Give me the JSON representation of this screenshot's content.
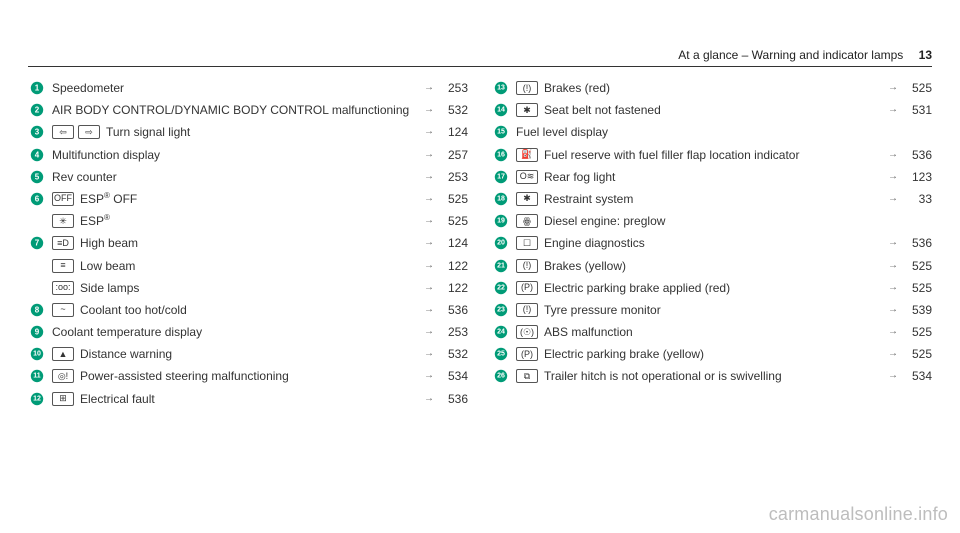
{
  "header": {
    "title": "At a glance – Warning and indicator lamps",
    "page_number": "13"
  },
  "circle": {
    "fill": "#009b77",
    "text": "#ffffff"
  },
  "left": [
    {
      "n": "1",
      "icons": [],
      "text": "Speedometer",
      "page": "253"
    },
    {
      "n": "2",
      "icons": [],
      "text": "AIR BODY CONTROL/DYNAMIC BODY CONTROL malfunctioning",
      "page": "532"
    },
    {
      "n": "3",
      "icons": [
        "⇦",
        "⇨"
      ],
      "text": "Turn signal light",
      "page": "124"
    },
    {
      "n": "4",
      "icons": [],
      "text": "Multifunction display",
      "page": "257"
    },
    {
      "n": "5",
      "icons": [],
      "text": "Rev counter",
      "page": "253"
    },
    {
      "n": "6",
      "icons": [
        "OFF"
      ],
      "text": "ESP® OFF",
      "page": "525",
      "sup": true
    },
    {
      "n": "",
      "icons": [
        "✳"
      ],
      "text": "ESP®",
      "page": "525",
      "sup": true
    },
    {
      "n": "7",
      "icons": [
        "≡D"
      ],
      "text": "High beam",
      "page": "124"
    },
    {
      "n": "",
      "icons": [
        "≡"
      ],
      "text": "Low beam",
      "page": "122"
    },
    {
      "n": "",
      "icons": [
        ":oo:"
      ],
      "text": "Side lamps",
      "page": "122"
    },
    {
      "n": "8",
      "icons": [
        "~"
      ],
      "text": "Coolant too hot/cold",
      "page": "536"
    },
    {
      "n": "9",
      "icons": [],
      "text": "Coolant temperature display",
      "page": "253"
    },
    {
      "n": "10",
      "icons": [
        "▲"
      ],
      "text": "Distance warning",
      "page": "532"
    },
    {
      "n": "11",
      "icons": [
        "◎!"
      ],
      "text": "Power-assisted steering malfunctioning",
      "page": "534"
    },
    {
      "n": "12",
      "icons": [
        "⊞"
      ],
      "text": "Electrical fault",
      "page": "536"
    }
  ],
  "right": [
    {
      "n": "13",
      "icons": [
        "(!)"
      ],
      "text": "Brakes (red)",
      "page": "525"
    },
    {
      "n": "14",
      "icons": [
        "✱"
      ],
      "text": "Seat belt not fastened",
      "page": "531"
    },
    {
      "n": "15",
      "icons": [],
      "text": "Fuel level display",
      "page": ""
    },
    {
      "n": "16",
      "icons": [
        "⛽"
      ],
      "text": "Fuel reserve with fuel filler flap location indicator",
      "page": "536"
    },
    {
      "n": "17",
      "icons": [
        "O≋"
      ],
      "text": "Rear fog light",
      "page": "123"
    },
    {
      "n": "18",
      "icons": [
        "✱"
      ],
      "text": "Restraint system",
      "page": "33"
    },
    {
      "n": "19",
      "icons": [
        "ꙮ"
      ],
      "text": "Diesel engine: preglow",
      "page": ""
    },
    {
      "n": "20",
      "icons": [
        "☐"
      ],
      "text": "Engine diagnostics",
      "page": "536"
    },
    {
      "n": "21",
      "icons": [
        "(!)"
      ],
      "text": "Brakes (yellow)",
      "page": "525"
    },
    {
      "n": "22",
      "icons": [
        "(P)"
      ],
      "text": "Electric parking brake applied (red)",
      "page": "525"
    },
    {
      "n": "23",
      "icons": [
        "(!)"
      ],
      "text": "Tyre pressure monitor",
      "page": "539"
    },
    {
      "n": "24",
      "icons": [
        "(☉)"
      ],
      "text": "ABS malfunction",
      "page": "525"
    },
    {
      "n": "25",
      "icons": [
        "(P)"
      ],
      "text": "Electric parking brake (yellow)",
      "page": "525"
    },
    {
      "n": "26",
      "icons": [
        "⧉"
      ],
      "text": "Trailer hitch is not operational or is swivel­ling",
      "page": "534"
    }
  ],
  "watermark": "carmanualsonline.info"
}
